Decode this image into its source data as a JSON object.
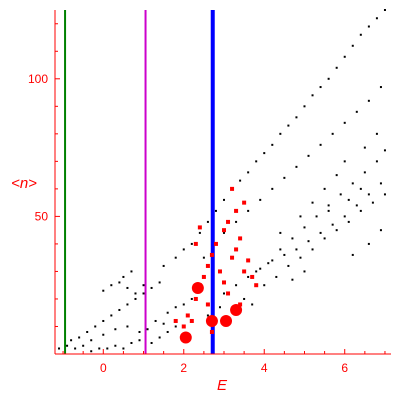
{
  "chart_data": {
    "type": "scatter",
    "xlabel": "E",
    "ylabel": "<n>",
    "xlim": [
      -1.2,
      7.15
    ],
    "ylim": [
      0,
      125
    ],
    "x_ticks": [
      0,
      2,
      4,
      6
    ],
    "y_ticks": [
      50,
      100
    ],
    "grid": false,
    "colors": {
      "axes": "#ff0000",
      "background": "#ffffff"
    },
    "vertical_lines": [
      {
        "x": -0.95,
        "color": "#008000"
      },
      {
        "x": 1.05,
        "color": "#cc00cc"
      },
      {
        "x": 2.72,
        "color": "#0000ff"
      }
    ],
    "series": [
      {
        "color": "#000000",
        "marker": "dot",
        "points": [
          [
            -1.1,
            2
          ],
          [
            -0.9,
            3
          ],
          [
            -0.7,
            2
          ],
          [
            -0.5,
            3
          ],
          [
            -0.3,
            1
          ],
          [
            -0.1,
            2
          ],
          [
            0.1,
            2
          ],
          [
            0.3,
            3
          ],
          [
            0.5,
            2
          ],
          [
            0.7,
            4
          ],
          [
            0.9,
            5
          ],
          [
            1.2,
            4
          ],
          [
            1.4,
            6
          ],
          [
            1.6,
            8
          ],
          [
            1.8,
            10
          ],
          [
            -0.8,
            5
          ],
          [
            -0.6,
            6
          ],
          [
            -0.4,
            8
          ],
          [
            -0.2,
            10
          ],
          [
            0,
            12
          ],
          [
            0.2,
            14
          ],
          [
            0.4,
            16
          ],
          [
            0.6,
            18
          ],
          [
            0.8,
            20
          ],
          [
            1,
            22
          ],
          [
            1.2,
            24
          ],
          [
            1.4,
            26
          ],
          [
            0,
            23
          ],
          [
            0.2,
            25
          ],
          [
            0.4,
            26
          ],
          [
            0.6,
            24
          ],
          [
            0.8,
            22
          ],
          [
            1,
            25
          ],
          [
            0.5,
            28
          ],
          [
            0.7,
            30
          ],
          [
            1.5,
            32
          ],
          [
            1.8,
            35
          ],
          [
            2,
            38
          ],
          [
            2.2,
            40
          ],
          [
            2.4,
            44
          ],
          [
            2.6,
            48
          ],
          [
            2.8,
            52
          ],
          [
            3,
            56
          ],
          [
            3.2,
            60
          ],
          [
            3.4,
            63
          ],
          [
            3.6,
            66
          ],
          [
            3.8,
            70
          ],
          [
            4,
            73
          ],
          [
            4.2,
            76
          ],
          [
            4.4,
            80
          ],
          [
            4.6,
            83
          ],
          [
            4.8,
            86
          ],
          [
            5,
            90
          ],
          [
            5.2,
            94
          ],
          [
            5.4,
            97
          ],
          [
            5.6,
            100
          ],
          [
            5.8,
            104
          ],
          [
            6,
            108
          ],
          [
            6.2,
            112
          ],
          [
            6.4,
            116
          ],
          [
            6.6,
            119
          ],
          [
            6.8,
            122
          ],
          [
            7,
            125
          ],
          [
            2.5,
            35
          ],
          [
            2.8,
            40
          ],
          [
            3,
            44
          ],
          [
            3.3,
            48
          ],
          [
            3.6,
            52
          ],
          [
            3.9,
            56
          ],
          [
            4.2,
            60
          ],
          [
            4.5,
            64
          ],
          [
            4.8,
            68
          ],
          [
            5.1,
            72
          ],
          [
            5.4,
            76
          ],
          [
            5.7,
            80
          ],
          [
            6,
            84
          ],
          [
            6.3,
            88
          ],
          [
            6.6,
            92
          ],
          [
            6.9,
            97
          ],
          [
            3,
            22
          ],
          [
            3.3,
            25
          ],
          [
            3.6,
            28
          ],
          [
            3.9,
            31
          ],
          [
            4.2,
            34
          ],
          [
            4.5,
            36
          ],
          [
            4.8,
            38
          ],
          [
            5.1,
            41
          ],
          [
            5.4,
            44
          ],
          [
            5.7,
            47
          ],
          [
            6,
            50
          ],
          [
            6.3,
            54
          ],
          [
            6.6,
            58
          ],
          [
            6.9,
            62
          ],
          [
            3.8,
            30
          ],
          [
            4.1,
            33
          ],
          [
            4.4,
            38
          ],
          [
            4.7,
            42
          ],
          [
            5,
            46
          ],
          [
            5.3,
            50
          ],
          [
            5.6,
            54
          ],
          [
            5.9,
            58
          ],
          [
            6.2,
            62
          ],
          [
            6.5,
            66
          ],
          [
            6.8,
            70
          ],
          [
            7,
            74
          ],
          [
            4,
            25
          ],
          [
            4.3,
            28
          ],
          [
            4.6,
            32
          ],
          [
            4.9,
            35
          ],
          [
            5.2,
            38
          ],
          [
            5.5,
            42
          ],
          [
            5.8,
            45
          ],
          [
            6.1,
            48
          ],
          [
            6.4,
            52
          ],
          [
            6.7,
            55
          ],
          [
            7,
            58
          ],
          [
            2,
            18
          ],
          [
            2.2,
            20
          ],
          [
            1.6,
            15
          ],
          [
            1.8,
            17
          ],
          [
            1.3,
            12
          ],
          [
            1.5,
            11
          ],
          [
            1.1,
            9
          ],
          [
            0.9,
            8
          ],
          [
            0.6,
            10
          ],
          [
            0.3,
            9
          ],
          [
            0,
            7
          ],
          [
            -0.3,
            5
          ],
          [
            5.5,
            60
          ],
          [
            6,
            70
          ],
          [
            6.5,
            75
          ],
          [
            6.8,
            80
          ],
          [
            5.8,
            65
          ],
          [
            5.2,
            55
          ],
          [
            4.9,
            50
          ],
          [
            4.4,
            44
          ],
          [
            6.2,
            36
          ],
          [
            6.6,
            40
          ],
          [
            6.9,
            45
          ],
          [
            5,
            30
          ],
          [
            4.7,
            27
          ],
          [
            3.5,
            20
          ],
          [
            3.7,
            18
          ],
          [
            2.6,
            14
          ],
          [
            2.9,
            17
          ],
          [
            6.4,
            60
          ],
          [
            6.1,
            56
          ],
          [
            5.6,
            52
          ]
        ]
      },
      {
        "color": "#ff0000",
        "marker": "square",
        "points": [
          [
            2,
            10
          ],
          [
            2.1,
            14
          ],
          [
            2.3,
            20
          ],
          [
            2.4,
            25
          ],
          [
            2.5,
            28
          ],
          [
            2.6,
            32
          ],
          [
            2.7,
            36
          ],
          [
            2.8,
            40
          ],
          [
            2.9,
            30
          ],
          [
            3,
            26
          ],
          [
            3.1,
            22
          ],
          [
            3.2,
            35
          ],
          [
            3.3,
            38
          ],
          [
            3.4,
            42
          ],
          [
            3.5,
            30
          ],
          [
            3.6,
            34
          ],
          [
            3.7,
            28
          ],
          [
            2.2,
            12
          ],
          [
            2.6,
            18
          ],
          [
            3,
            45
          ],
          [
            3.1,
            48
          ],
          [
            3.3,
            52
          ],
          [
            3.5,
            55
          ],
          [
            3.2,
            60
          ],
          [
            2.4,
            46
          ],
          [
            2.3,
            40
          ],
          [
            3.8,
            25
          ],
          [
            1.8,
            12
          ],
          [
            2.7,
            8
          ],
          [
            3.4,
            18
          ]
        ]
      },
      {
        "color": "#ff0000",
        "marker": "circle",
        "points": [
          [
            2.35,
            24
          ],
          [
            2.7,
            12
          ],
          [
            3.05,
            12
          ],
          [
            2.05,
            6
          ],
          [
            3.3,
            16
          ]
        ]
      }
    ]
  }
}
